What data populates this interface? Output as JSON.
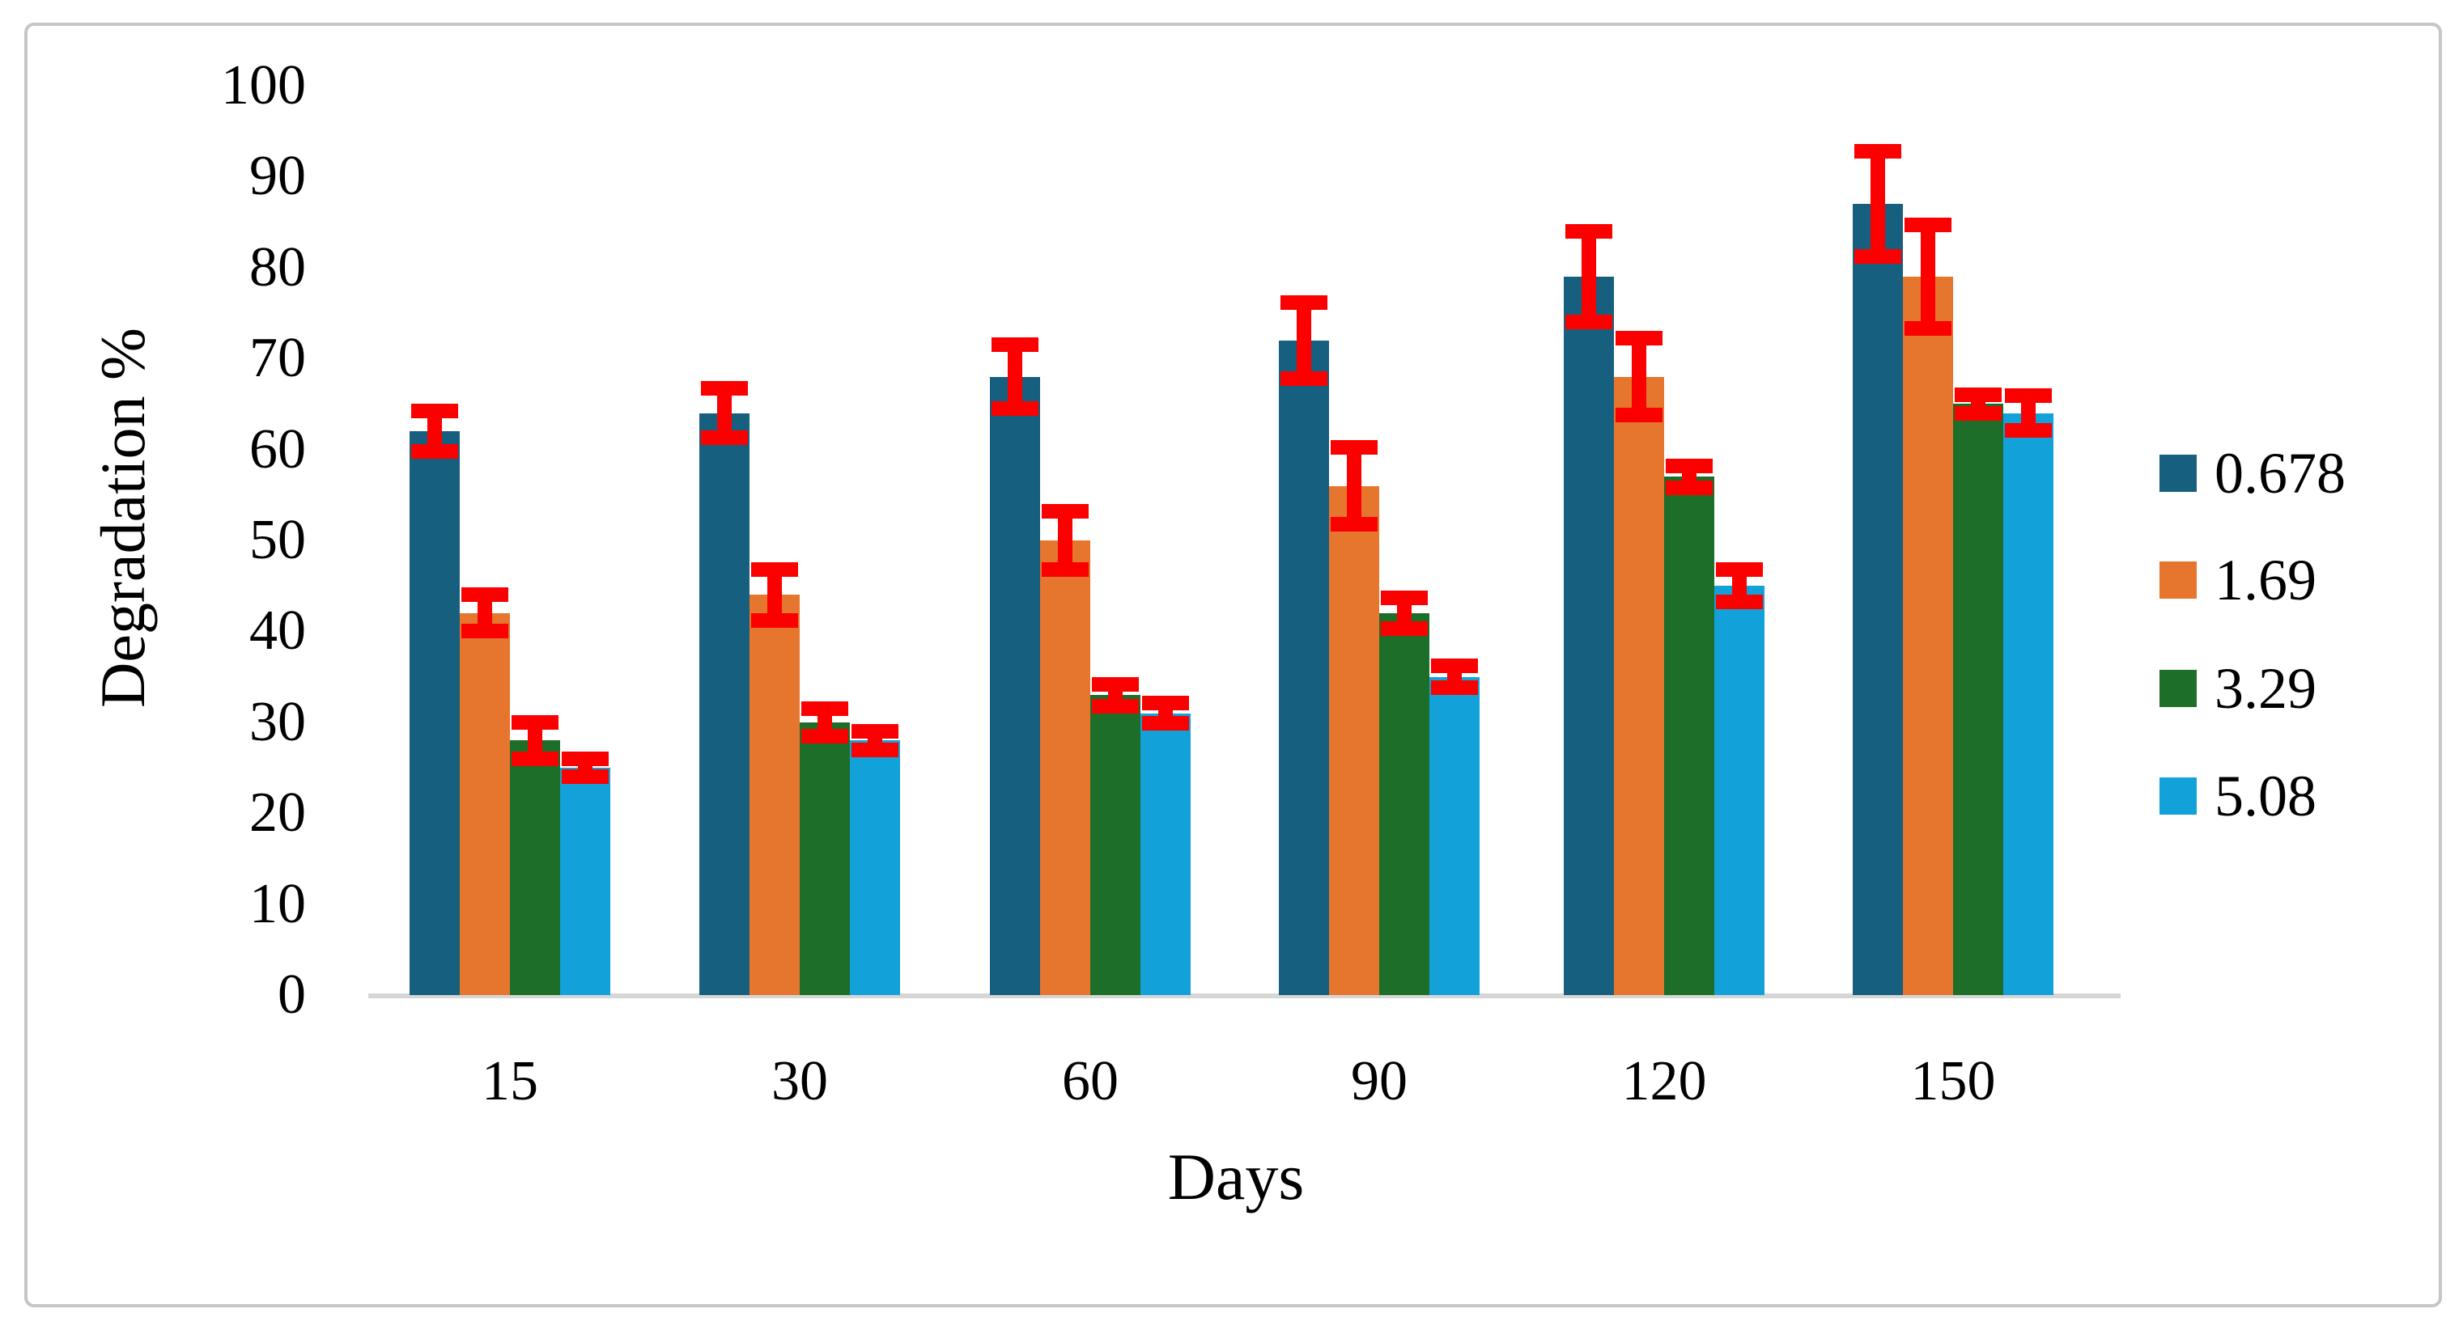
{
  "chart_data": {
    "type": "bar",
    "title": "",
    "xlabel": "Days",
    "ylabel": "Degradation %",
    "categories": [
      "15",
      "30",
      "60",
      "90",
      "120",
      "150"
    ],
    "series": [
      {
        "name": "0.678",
        "color": "#175F7F",
        "values": [
          62,
          64,
          68,
          72,
          79,
          87
        ],
        "errors": [
          2.2,
          2.7,
          3.5,
          4.2,
          5.0,
          5.8
        ]
      },
      {
        "name": "1.69",
        "color": "#E6752E",
        "values": [
          42,
          44,
          50,
          56,
          68,
          79
        ],
        "errors": [
          2.0,
          2.8,
          3.2,
          4.2,
          4.2,
          5.7
        ]
      },
      {
        "name": "3.29",
        "color": "#1D6E28",
        "values": [
          28,
          30,
          33,
          42,
          57,
          65
        ],
        "errors": [
          2.0,
          1.5,
          1.2,
          1.7,
          1.2,
          1.0
        ]
      },
      {
        "name": "5.08",
        "color": "#12A2D9",
        "values": [
          25,
          28,
          31,
          35,
          45,
          64
        ],
        "errors": [
          1.0,
          1.0,
          1.1,
          1.2,
          1.8,
          1.9
        ]
      }
    ],
    "ylim": [
      0,
      100
    ],
    "yticks": [
      0,
      10,
      20,
      30,
      40,
      50,
      60,
      70,
      80,
      90,
      100
    ],
    "grid": false,
    "legend_position": "right",
    "error_bar_color": "#FC0000",
    "axis_line_color": "#D6D6D6",
    "frame_border_color": "#C6C6C6"
  }
}
